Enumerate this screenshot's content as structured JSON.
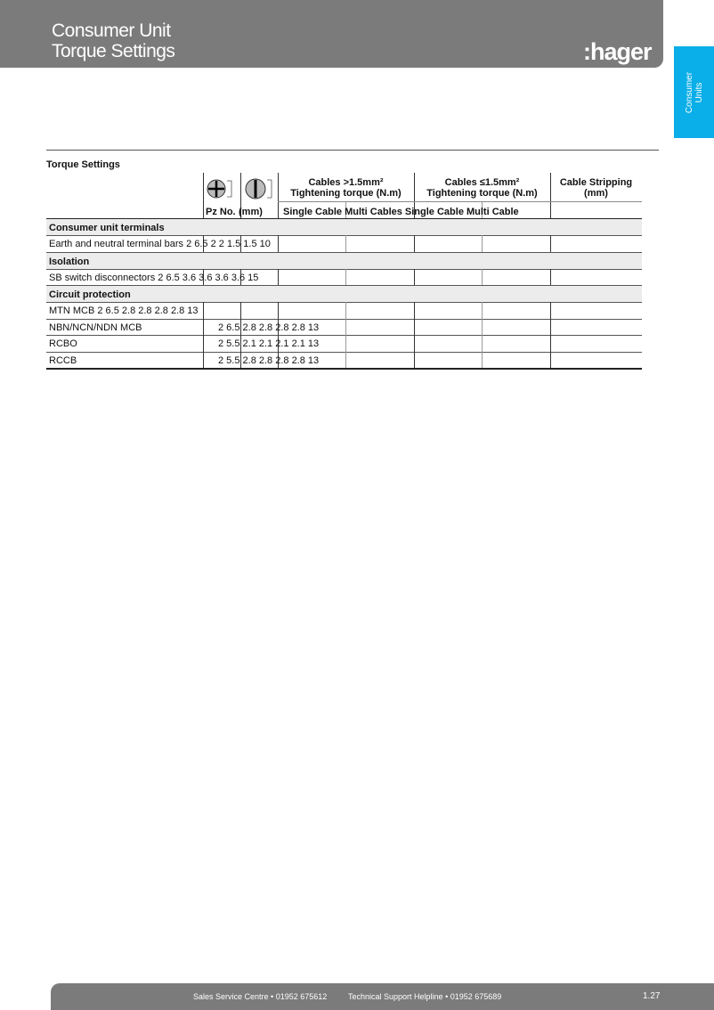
{
  "header": {
    "title_line1": "Consumer Unit",
    "title_line2": "Torque Settings",
    "logo": ":hager"
  },
  "side_tab": {
    "line1": "Consumer",
    "line2": "Units",
    "color": "#0aaee8"
  },
  "table": {
    "caption": "Torque Settings",
    "icons": [
      "pozidriv-screw-icon",
      "slotted-screw-icon"
    ],
    "col_headers": {
      "pz": "Pz No.",
      "mm": "(mm)",
      "gt_line1": "Cables >1.5mm²",
      "gt_line2": "Tightening torque (N.m)",
      "le_line1": "Cables ≤1.5mm²",
      "le_line2": "Tightening torque (N.m)",
      "strip_line1": "Cable Stripping",
      "strip_line2": "(mm)",
      "sub": "Single Cable Multi Cables Single Cable Multi Cable"
    },
    "sections": [
      {
        "title": "Consumer unit terminals",
        "rows": [
          {
            "text": "Earth and neutral terminal bars 2 6.5 2 2 1.5 1.5 10"
          }
        ]
      },
      {
        "title": "Isolation",
        "rows": [
          {
            "text": "SB switch disconnectors 2 6.5 3.6 3.6 3.6 3.6 15"
          }
        ]
      },
      {
        "title": "Circuit protection",
        "rows": [
          {
            "text": "MTN MCB 2 6.5 2.8 2.8 2.8 2.8 13"
          },
          {
            "label": "NBN/NCN/NDN MCB",
            "values": "2 6.5 2.8 2.8 2.8 2.8 13"
          },
          {
            "label": "RCBO",
            "values": "2 5.5 2.1 2.1 2.1 2.1 13"
          },
          {
            "label": "RCCB",
            "values": "2 5.5 2.8 2.8 2.8 2.8 13"
          }
        ]
      }
    ]
  },
  "footer": {
    "sales": "Sales Service Centre • 01952 675612",
    "support": "Technical Support Helpline • 01952 675689",
    "page": "1.27"
  }
}
